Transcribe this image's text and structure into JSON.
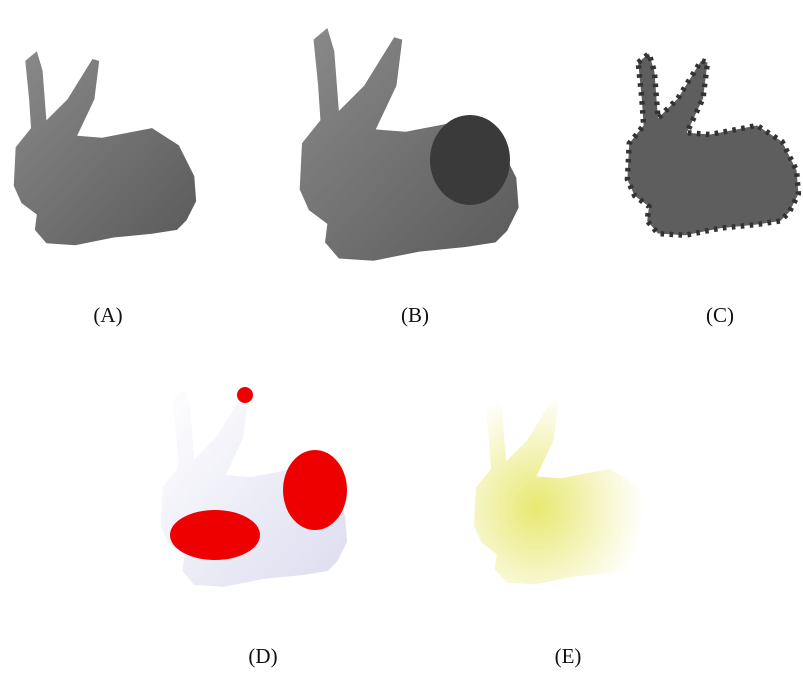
{
  "panels": [
    {
      "label": "(A)"
    },
    {
      "label": "(B)"
    },
    {
      "label": "(C)"
    },
    {
      "label": "(D)"
    },
    {
      "label": "(E)"
    }
  ]
}
